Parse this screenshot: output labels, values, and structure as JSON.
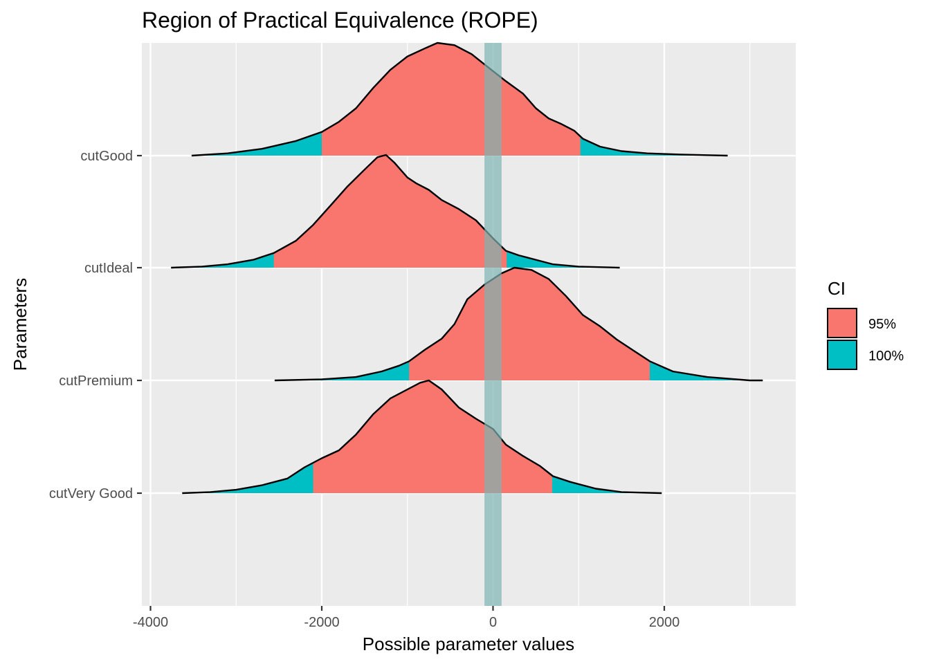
{
  "chart_data": {
    "type": "density_ridges",
    "title": "Region of Practical Equivalence (ROPE)",
    "xlabel": "Possible parameter values",
    "ylabel": "Parameters",
    "xlim": [
      -4000,
      3500
    ],
    "x_ticks": [
      -4000,
      -2000,
      0,
      2000
    ],
    "x_tick_labels": [
      "-4000",
      "-2000",
      "0",
      "2000"
    ],
    "x_minor_ticks": [
      -3000,
      -1000,
      1000,
      3000
    ],
    "grid": true,
    "rope": [
      -100,
      100
    ],
    "rope_color": "#7fb3b3",
    "legend": {
      "title": "CI",
      "position": "right",
      "entries": [
        {
          "label": "95%",
          "color": "#F8766D"
        },
        {
          "label": "100%",
          "color": "#00BFC4"
        }
      ]
    },
    "series": [
      {
        "name": "cutGood",
        "ci95": [
          -2000,
          1020
        ],
        "range": [
          -3520,
          2740
        ],
        "mode": -600,
        "density": [
          [
            -3520,
            0.0
          ],
          [
            -3100,
            0.02
          ],
          [
            -2700,
            0.06
          ],
          [
            -2300,
            0.13
          ],
          [
            -2000,
            0.21
          ],
          [
            -1800,
            0.3
          ],
          [
            -1600,
            0.42
          ],
          [
            -1400,
            0.6
          ],
          [
            -1200,
            0.76
          ],
          [
            -1000,
            0.88
          ],
          [
            -800,
            0.95
          ],
          [
            -650,
            1.0
          ],
          [
            -450,
            0.98
          ],
          [
            -250,
            0.9
          ],
          [
            -50,
            0.78
          ],
          [
            150,
            0.66
          ],
          [
            350,
            0.55
          ],
          [
            500,
            0.42
          ],
          [
            650,
            0.33
          ],
          [
            800,
            0.28
          ],
          [
            950,
            0.22
          ],
          [
            1050,
            0.15
          ],
          [
            1250,
            0.08
          ],
          [
            1500,
            0.04
          ],
          [
            1800,
            0.02
          ],
          [
            2200,
            0.01
          ],
          [
            2740,
            0.0
          ]
        ]
      },
      {
        "name": "cutIdeal",
        "ci95": [
          -2560,
          160
        ],
        "range": [
          -3760,
          1480
        ],
        "mode": -1350,
        "density": [
          [
            -3760,
            0.0
          ],
          [
            -3400,
            0.01
          ],
          [
            -3100,
            0.03
          ],
          [
            -2800,
            0.07
          ],
          [
            -2560,
            0.13
          ],
          [
            -2300,
            0.24
          ],
          [
            -2100,
            0.38
          ],
          [
            -1900,
            0.55
          ],
          [
            -1700,
            0.72
          ],
          [
            -1500,
            0.87
          ],
          [
            -1350,
            0.98
          ],
          [
            -1250,
            1.0
          ],
          [
            -1150,
            0.93
          ],
          [
            -1000,
            0.8
          ],
          [
            -900,
            0.75
          ],
          [
            -750,
            0.69
          ],
          [
            -600,
            0.6
          ],
          [
            -400,
            0.52
          ],
          [
            -200,
            0.42
          ],
          [
            0,
            0.26
          ],
          [
            150,
            0.15
          ],
          [
            300,
            0.11
          ],
          [
            500,
            0.07
          ],
          [
            700,
            0.03
          ],
          [
            1000,
            0.01
          ],
          [
            1480,
            0.0
          ]
        ]
      },
      {
        "name": "cutPremium",
        "ci95": [
          -980,
          1830
        ],
        "range": [
          -2550,
          3150
        ],
        "mode": 300,
        "density": [
          [
            -2550,
            0.0
          ],
          [
            -2000,
            0.01
          ],
          [
            -1600,
            0.03
          ],
          [
            -1300,
            0.08
          ],
          [
            -1100,
            0.13
          ],
          [
            -980,
            0.17
          ],
          [
            -800,
            0.27
          ],
          [
            -600,
            0.37
          ],
          [
            -450,
            0.5
          ],
          [
            -300,
            0.72
          ],
          [
            -100,
            0.85
          ],
          [
            100,
            0.95
          ],
          [
            250,
            1.0
          ],
          [
            450,
            0.98
          ],
          [
            650,
            0.9
          ],
          [
            850,
            0.75
          ],
          [
            1050,
            0.58
          ],
          [
            1250,
            0.48
          ],
          [
            1450,
            0.36
          ],
          [
            1650,
            0.26
          ],
          [
            1830,
            0.17
          ],
          [
            2100,
            0.08
          ],
          [
            2500,
            0.03
          ],
          [
            3000,
            0.0
          ],
          [
            3150,
            0.0
          ]
        ]
      },
      {
        "name": "cutVery Good",
        "ci95": [
          -2100,
          690
        ],
        "range": [
          -3630,
          1970
        ],
        "mode": -800,
        "density": [
          [
            -3630,
            0.0
          ],
          [
            -3300,
            0.01
          ],
          [
            -3000,
            0.03
          ],
          [
            -2700,
            0.07
          ],
          [
            -2400,
            0.13
          ],
          [
            -2200,
            0.23
          ],
          [
            -2000,
            0.31
          ],
          [
            -1800,
            0.38
          ],
          [
            -1600,
            0.52
          ],
          [
            -1400,
            0.7
          ],
          [
            -1200,
            0.84
          ],
          [
            -1000,
            0.92
          ],
          [
            -850,
            0.98
          ],
          [
            -750,
            1.0
          ],
          [
            -600,
            0.92
          ],
          [
            -400,
            0.76
          ],
          [
            -200,
            0.66
          ],
          [
            0,
            0.57
          ],
          [
            150,
            0.43
          ],
          [
            350,
            0.33
          ],
          [
            550,
            0.24
          ],
          [
            700,
            0.15
          ],
          [
            900,
            0.1
          ],
          [
            1200,
            0.04
          ],
          [
            1500,
            0.01
          ],
          [
            1970,
            0.0
          ]
        ]
      }
    ]
  }
}
